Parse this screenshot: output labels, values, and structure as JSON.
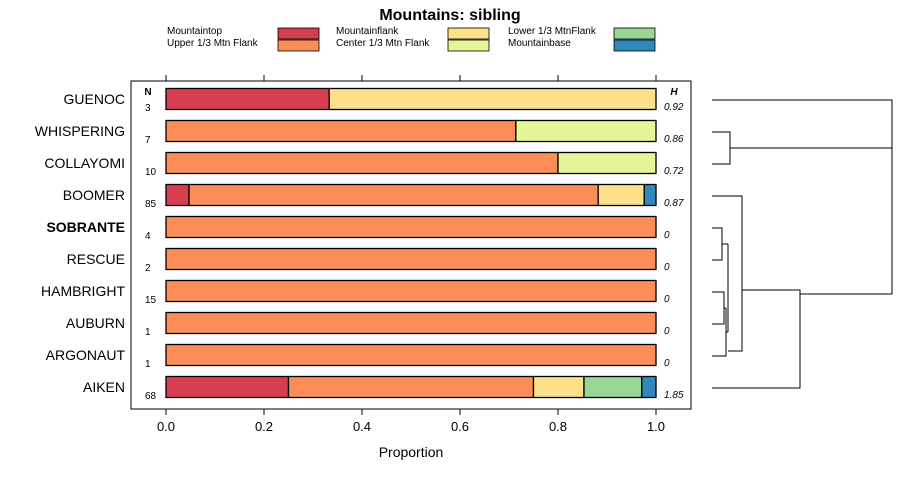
{
  "chart_data": {
    "type": "bar",
    "orientation": "horizontal",
    "stacked": true,
    "title": "Mountains: sibling",
    "xlabel": "Proportion",
    "xlim": [
      0,
      1
    ],
    "xticks": [
      "0.0",
      "0.2",
      "0.4",
      "0.6",
      "0.8",
      "1.0"
    ],
    "n_header": "N",
    "h_header": "H",
    "legend": [
      {
        "name": "Mountaintop",
        "color": "#d53e4f"
      },
      {
        "name": "Upper 1/3 Mtn Flank",
        "color": "#fc8d59"
      },
      {
        "name": "Mountainflank",
        "color": "#fee08b"
      },
      {
        "name": "Center 1/3 Mtn Flank",
        "color": "#e6f598"
      },
      {
        "name": "Lower 1/3 MtnFlank",
        "color": "#99d594"
      },
      {
        "name": "Mountainbase",
        "color": "#3288bd"
      }
    ],
    "categories": [
      "GUENOC",
      "WHISPERING",
      "COLLAYOMI",
      "BOOMER",
      "SOBRANTE",
      "RESCUE",
      "HAMBRIGHT",
      "AUBURN",
      "ARGONAUT",
      "AIKEN"
    ],
    "highlight": "SOBRANTE",
    "n": [
      "3",
      "7",
      "10",
      "85",
      "4",
      "2",
      "15",
      "1",
      "1",
      "68"
    ],
    "h": [
      "0.92",
      "0.86",
      "0.72",
      "0.87",
      "0",
      "0",
      "0",
      "0",
      "0",
      "1.85"
    ],
    "series": [
      {
        "name": "Mountaintop",
        "values": [
          0.333,
          0,
          0,
          0.047,
          0,
          0,
          0,
          0,
          0,
          0.25
        ]
      },
      {
        "name": "Upper 1/3 Mtn Flank",
        "values": [
          0,
          0.714,
          0.8,
          0.835,
          1,
          1,
          1,
          1,
          1,
          0.5
        ]
      },
      {
        "name": "Mountainflank",
        "values": [
          0.667,
          0,
          0,
          0.094,
          0,
          0,
          0,
          0,
          0,
          0.103
        ]
      },
      {
        "name": "Center 1/3 Mtn Flank",
        "values": [
          0,
          0.286,
          0.2,
          0,
          0,
          0,
          0,
          0,
          0,
          0
        ]
      },
      {
        "name": "Lower 1/3 MtnFlank",
        "values": [
          0,
          0,
          0,
          0,
          0,
          0,
          0,
          0,
          0,
          0.118
        ]
      },
      {
        "name": "Mountainbase",
        "values": [
          0,
          0,
          0,
          0.024,
          0,
          0,
          0,
          0,
          0,
          0.029
        ]
      }
    ],
    "dendrogram": {
      "merges": [
        [
          "WHISPERING",
          "COLLAYOMI",
          0.4
        ],
        [
          "HAMBRIGHT",
          "AUBURN",
          0.05
        ],
        [
          "SOBRANTE",
          "RESCUE",
          0.1
        ],
        [
          "HAMBRIGHT+AUBURN",
          "ARGONAUT",
          0.08
        ],
        [
          "SOBRANTE+RESCUE",
          "HAMBRIGHT+AUBURN+ARGONAUT",
          0.18
        ],
        [
          "BOOMER",
          "SOBRANTE+RESCUE+HAMBRIGHT+AUBURN+ARGONAUT",
          0.45
        ],
        [
          "BOOMER+...",
          "AIKEN",
          1.3
        ],
        [
          "GUENOC",
          "WHISPERING+COLLAYOMI",
          2.6
        ],
        [
          "GUENOC+WHISPERING+COLLAYOMI",
          "BOOMER+...+AIKEN",
          2.6
        ]
      ]
    }
  }
}
